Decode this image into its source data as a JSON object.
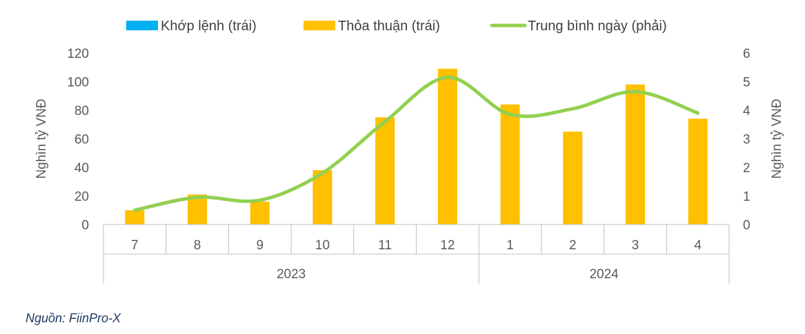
{
  "chart_data": {
    "type": "bar",
    "categories": [
      "7",
      "8",
      "9",
      "10",
      "11",
      "12",
      "1",
      "2",
      "3",
      "4"
    ],
    "groups": [
      {
        "label": "2023",
        "count": 6
      },
      {
        "label": "2024",
        "count": 4
      }
    ],
    "series": [
      {
        "name": "Khớp lệnh (trái)",
        "type": "bar",
        "axis": "left",
        "color": "#00b0f0",
        "values": [
          0,
          0,
          0,
          0,
          0,
          0,
          0,
          0,
          0,
          0
        ]
      },
      {
        "name": "Thỏa thuận (trái)",
        "type": "bar",
        "axis": "left",
        "color": "#ffc000",
        "values": [
          10,
          21,
          16,
          38,
          75,
          109,
          84,
          65,
          98,
          74
        ]
      },
      {
        "name": "Trung bình ngày (phải)",
        "type": "line",
        "axis": "right",
        "color": "#92d050",
        "smooth": true,
        "values": [
          0.5,
          0.95,
          0.85,
          1.8,
          3.6,
          5.15,
          3.85,
          4.05,
          4.65,
          3.9
        ]
      }
    ],
    "ylabel_left": "Nghìn tỷ VNĐ",
    "ylabel_right": "Nghìn tỷ VNĐ",
    "ylim_left": [
      0,
      120
    ],
    "ylim_right": [
      0,
      6
    ],
    "yticks_left": [
      "0",
      "20",
      "40",
      "60",
      "80",
      "100",
      "120"
    ],
    "yticks_right": [
      "0",
      "1",
      "2",
      "3",
      "4",
      "5",
      "6"
    ],
    "legend_position": "top",
    "grid": false
  },
  "footer": {
    "source": "Nguồn: FiinPro-X"
  }
}
